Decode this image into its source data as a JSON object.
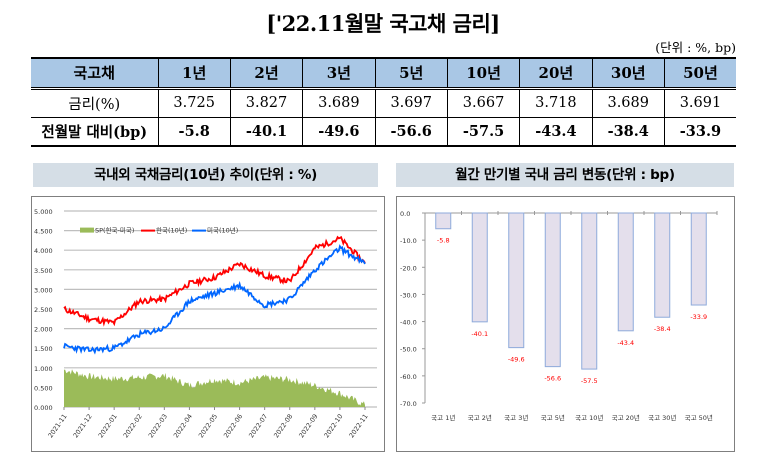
{
  "title": "['22.11월말 국고채 금리]",
  "unit_note": "(단위 : %, bp)",
  "table": {
    "header": [
      "국고채",
      "1년",
      "2년",
      "3년",
      "5년",
      "10년",
      "20년",
      "30년",
      "50년"
    ],
    "rows": [
      {
        "label": "금리(%)",
        "values": [
          "3.725",
          "3.827",
          "3.689",
          "3.697",
          "3.667",
          "3.718",
          "3.689",
          "3.691"
        ]
      },
      {
        "label": "전월말 대비(bp)",
        "values": [
          "-5.8",
          "-40.1",
          "-49.6",
          "-56.6",
          "-57.5",
          "-43.4",
          "-38.4",
          "-33.9"
        ]
      }
    ]
  },
  "panels": {
    "left_title": "국내외 국채금리(10년) 추이(단위 : %)",
    "right_title": "월간 만기별 국내 금리 변동(단위 : bp)"
  },
  "colors": {
    "header_bg": "#a9c7e5",
    "panel_head_bg": "#d5dee6",
    "korea": "#ff0000",
    "us": "#0066ff",
    "spread": "#9bbb59",
    "bar_fill": "#e4dfec",
    "bar_border": "#8eaadb",
    "label_red": "#ff0000"
  },
  "chart_data": [
    {
      "type": "line",
      "title": "국내외 국채금리(10년) 추이(단위 : %)",
      "xlabel": "",
      "ylabel": "%",
      "ylim": [
        0,
        5
      ],
      "yticks": [
        "0.000",
        "0.500",
        "1.000",
        "1.500",
        "2.000",
        "2.500",
        "3.000",
        "3.500",
        "4.000",
        "4.500",
        "5.000"
      ],
      "categories": [
        "2021-11",
        "2021-12",
        "2022-01",
        "2022-02",
        "2022-03",
        "2022-04",
        "2022-05",
        "2022-06",
        "2022-07",
        "2022-08",
        "2022-09",
        "2022-10",
        "2022-11"
      ],
      "grid": true,
      "legend_position": "top-inside",
      "series": [
        {
          "name": "SP(한국-미국)",
          "type": "area",
          "values": [
            0.95,
            0.78,
            0.72,
            0.75,
            0.8,
            0.55,
            0.7,
            0.62,
            0.75,
            0.7,
            0.55,
            0.35,
            0.05
          ]
        },
        {
          "name": "한국(10년)",
          "type": "line",
          "values": [
            2.5,
            2.25,
            2.15,
            2.7,
            2.75,
            3.15,
            3.3,
            3.65,
            3.35,
            3.2,
            4.05,
            4.3,
            3.67
          ]
        },
        {
          "name": "미국(10년)",
          "type": "line",
          "values": [
            1.55,
            1.45,
            1.5,
            1.85,
            2.0,
            2.7,
            2.9,
            3.1,
            2.6,
            2.75,
            3.5,
            4.05,
            3.65
          ]
        }
      ]
    },
    {
      "type": "bar",
      "title": "월간 만기별 국내 금리 변동(단위 : bp)",
      "xlabel": "",
      "ylabel": "bp",
      "ylim": [
        -70,
        0
      ],
      "yticks": [
        "0.0",
        "-10.0",
        "-20.0",
        "-30.0",
        "-40.0",
        "-50.0",
        "-60.0",
        "-70.0"
      ],
      "categories": [
        "국고 1년",
        "국고 2년",
        "국고 3년",
        "국고 5년",
        "국고 10년",
        "국고 20년",
        "국고 30년",
        "국고 50년"
      ],
      "values": [
        -5.8,
        -40.1,
        -49.6,
        -56.6,
        -57.5,
        -43.4,
        -38.4,
        -33.9
      ],
      "data_labels": [
        "-5.8",
        "-40.1",
        "-49.6",
        "-56.6",
        "-57.5",
        "-43.4",
        "-38.4",
        "-33.9"
      ],
      "grid": false
    }
  ]
}
